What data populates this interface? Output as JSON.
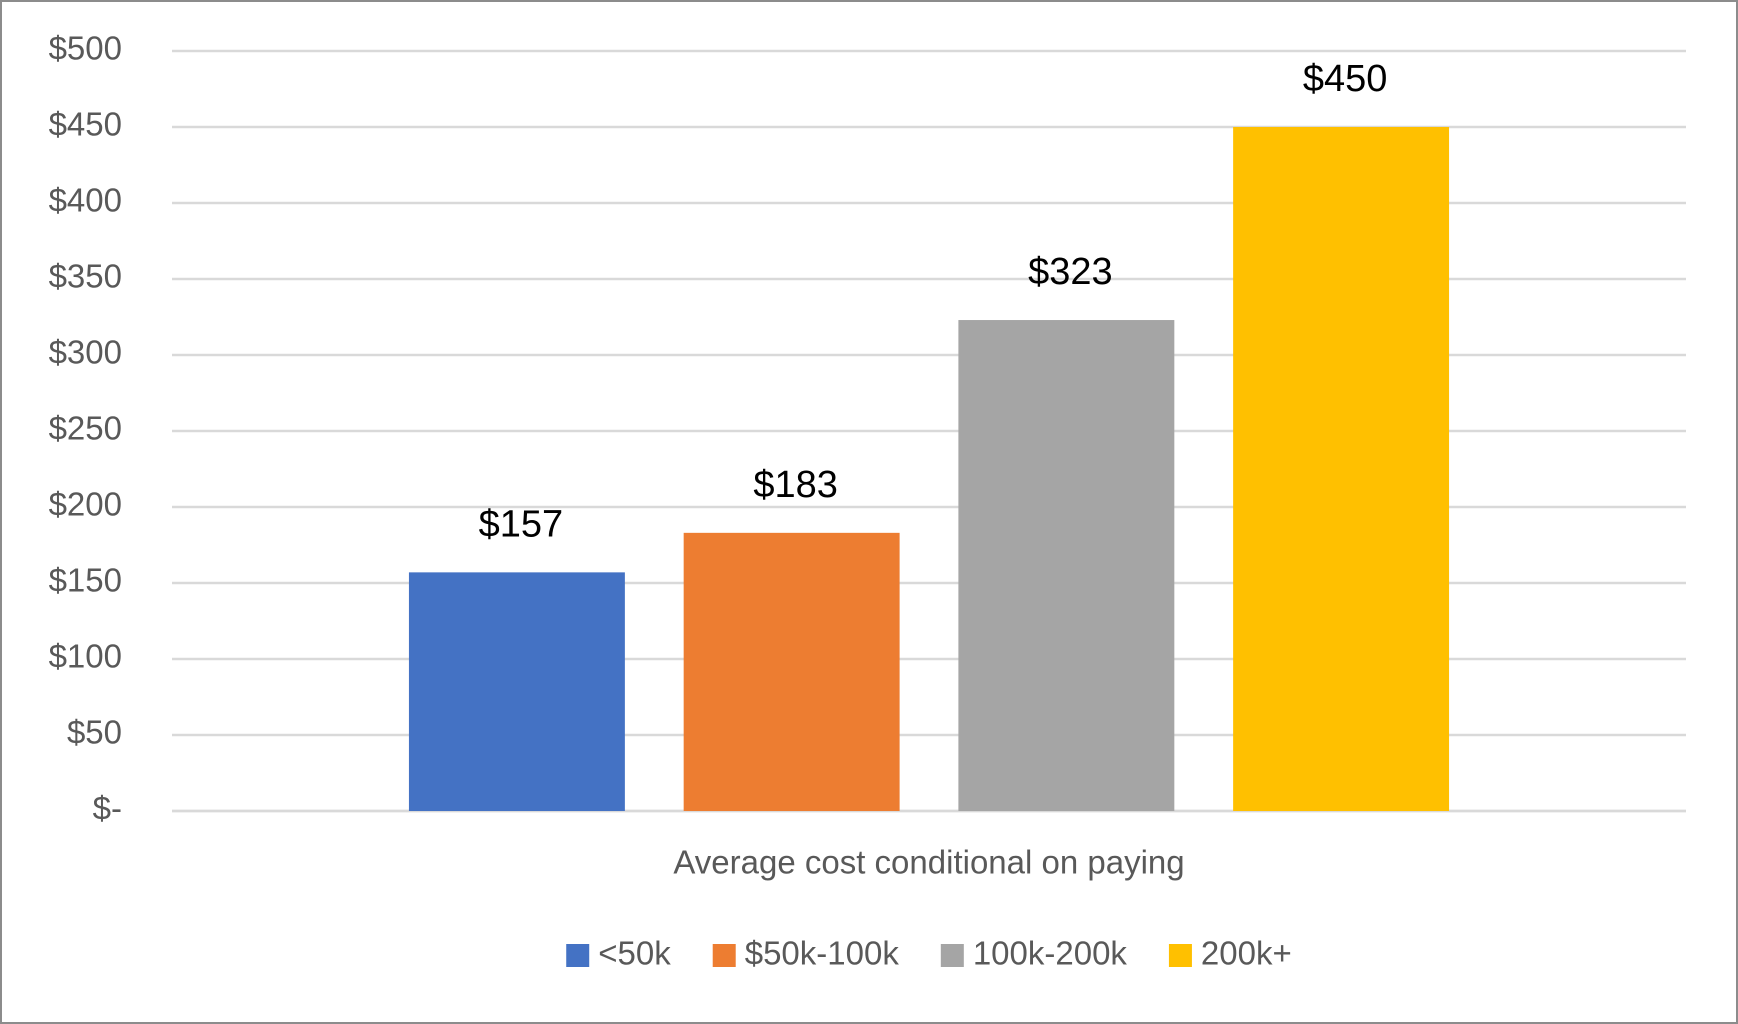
{
  "chart_data": {
    "type": "bar",
    "categories": [
      "Average cost conditional on paying"
    ],
    "series": [
      {
        "name": "<50k",
        "color": "#4472c4",
        "values": [
          157
        ],
        "value_labels": [
          "$157"
        ]
      },
      {
        "name": "$50k-100k",
        "color": "#ed7d31",
        "values": [
          183
        ],
        "value_labels": [
          "$183"
        ]
      },
      {
        "name": "100k-200k",
        "color": "#a5a5a5",
        "values": [
          323
        ],
        "value_labels": [
          "$323"
        ]
      },
      {
        "name": "200k+",
        "color": "#ffc000",
        "values": [
          450
        ],
        "value_labels": [
          "$450"
        ]
      }
    ],
    "ylim": [
      0,
      500
    ],
    "yticks": [
      {
        "value": 0,
        "label": "$-"
      },
      {
        "value": 50,
        "label": "$50"
      },
      {
        "value": 100,
        "label": "$100"
      },
      {
        "value": 150,
        "label": "$150"
      },
      {
        "value": 200,
        "label": "$200"
      },
      {
        "value": 250,
        "label": "$250"
      },
      {
        "value": 300,
        "label": "$300"
      },
      {
        "value": 350,
        "label": "$350"
      },
      {
        "value": 400,
        "label": "$400"
      },
      {
        "value": 450,
        "label": "$450"
      },
      {
        "value": 500,
        "label": "$500"
      }
    ],
    "grid": true,
    "legend": "bottom"
  }
}
